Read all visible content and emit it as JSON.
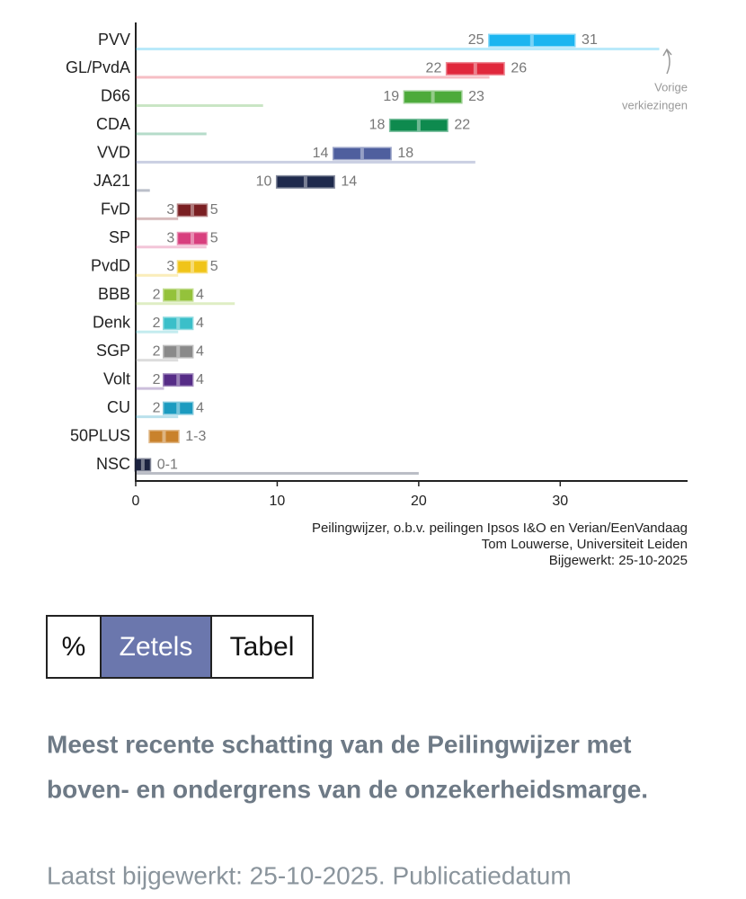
{
  "chart_data": {
    "type": "range-bar",
    "categories": [
      "PVV",
      "GL/PvdA",
      "D66",
      "CDA",
      "VVD",
      "JA21",
      "FvD",
      "SP",
      "PvdD",
      "BBB",
      "Denk",
      "SGP",
      "Volt",
      "CU",
      "50PLUS",
      "NSC"
    ],
    "low": [
      25,
      22,
      19,
      18,
      14,
      10,
      3,
      3,
      3,
      2,
      2,
      2,
      2,
      2,
      1,
      0
    ],
    "high": [
      31,
      26,
      23,
      22,
      18,
      14,
      5,
      5,
      5,
      4,
      4,
      4,
      4,
      4,
      3,
      1
    ],
    "range_labels": [
      null,
      null,
      null,
      null,
      null,
      null,
      null,
      null,
      null,
      null,
      null,
      null,
      null,
      null,
      "1-3",
      "0-1"
    ],
    "previous": [
      37,
      25,
      9,
      5,
      24,
      1,
      3,
      5,
      3,
      7,
      3,
      3,
      2,
      3,
      0,
      20
    ],
    "colors": [
      "#1cb5f0",
      "#e0283c",
      "#4daa3a",
      "#0e8a4e",
      "#4f5f9e",
      "#1f2a4d",
      "#7a1f22",
      "#d83f7e",
      "#f0c419",
      "#94c23b",
      "#3bbfc9",
      "#8a8a8a",
      "#562c87",
      "#1c9bc0",
      "#c9822c",
      "#1c2340"
    ],
    "xlim": [
      0,
      39
    ],
    "xticks": [
      0,
      10,
      20,
      30
    ],
    "annotation": [
      "Vorige",
      "verkiezingen"
    ],
    "source": [
      "Peilingwijzer, o.b.v. peilingen Ipsos I&O en Verian/EenVandaag",
      "Tom Louwerse, Universiteit Leiden",
      "Bijgewerkt: 25-10-2025"
    ]
  },
  "toggle": {
    "options": [
      "%",
      "Zetels",
      "Tabel"
    ],
    "selected": 1
  },
  "heading": [
    "Meest recente schatting van de Peilingwijzer met",
    "boven- en ondergrens van de onzekerheidsmarge."
  ],
  "paragraph": "Laatst bijgewerkt: 25-10-2025. Publicatiedatum"
}
